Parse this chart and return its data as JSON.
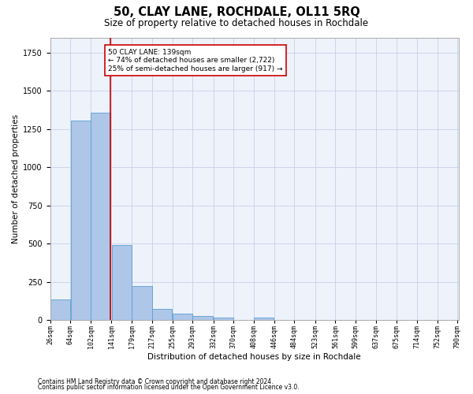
{
  "title": "50, CLAY LANE, ROCHDALE, OL11 5RQ",
  "subtitle": "Size of property relative to detached houses in Rochdale",
  "xlabel": "Distribution of detached houses by size in Rochdale",
  "ylabel": "Number of detached properties",
  "footnote1": "Contains HM Land Registry data © Crown copyright and database right 2024.",
  "footnote2": "Contains public sector information licensed under the Open Government Licence v3.0.",
  "bar_left_edges": [
    26,
    64,
    102,
    141,
    179,
    217,
    255,
    293,
    332,
    370,
    408,
    446,
    484,
    523,
    561,
    599,
    637,
    675,
    714,
    752
  ],
  "bar_widths": [
    38,
    38,
    38,
    38,
    38,
    38,
    38,
    38,
    38,
    38,
    38,
    38,
    38,
    38,
    38,
    38,
    38,
    38,
    38,
    38
  ],
  "bar_heights": [
    135,
    1305,
    1360,
    490,
    225,
    75,
    43,
    27,
    15,
    0,
    18,
    0,
    0,
    0,
    0,
    0,
    0,
    0,
    0,
    0
  ],
  "tick_labels": [
    "26sqm",
    "64sqm",
    "102sqm",
    "141sqm",
    "179sqm",
    "217sqm",
    "255sqm",
    "293sqm",
    "332sqm",
    "370sqm",
    "408sqm",
    "446sqm",
    "484sqm",
    "523sqm",
    "561sqm",
    "599sqm",
    "637sqm",
    "675sqm",
    "714sqm",
    "752sqm",
    "790sqm"
  ],
  "bar_color": "#aec6e8",
  "bar_edge_color": "#5a9fd4",
  "vline_x": 139,
  "vline_color": "#cc0000",
  "annotation_text": "50 CLAY LANE: 139sqm\n← 74% of detached houses are smaller (2,722)\n25% of semi-detached houses are larger (917) →",
  "annotation_box_color": "#ffffff",
  "annotation_box_edge": "#cc0000",
  "ylim": [
    0,
    1850
  ],
  "xlim": [
    26,
    792
  ],
  "bg_color": "#eef2fb",
  "grid_color": "#c8d0e8",
  "title_fontsize": 10.5,
  "subtitle_fontsize": 8.5,
  "axis_label_fontsize": 7.5,
  "ylabel_fontsize": 7.5,
  "tick_fontsize": 6.0,
  "annot_fontsize": 6.5,
  "footnote_fontsize": 5.5
}
